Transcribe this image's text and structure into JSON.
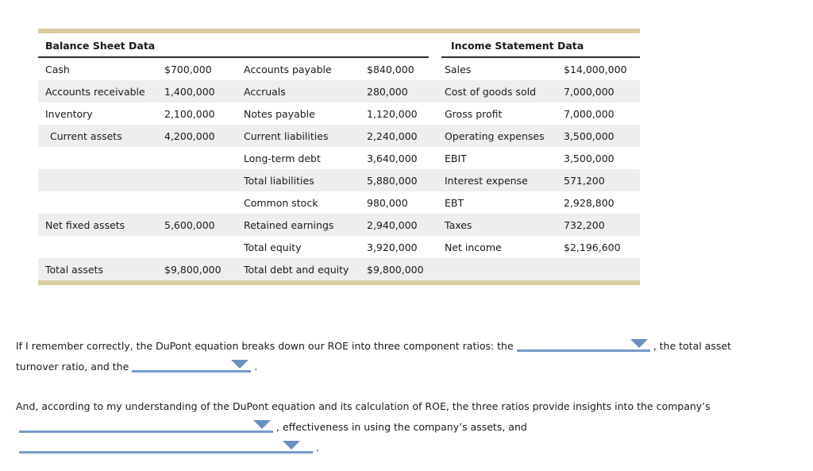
{
  "colors": {
    "accent_bar": "#d9cc9e",
    "stripe": "#eeeeee",
    "blank_line": "#759bc8",
    "dropdown_arrow": "#6a90bf"
  },
  "table": {
    "balance_header": "Balance Sheet Data",
    "income_header": "Income Statement Data",
    "rows": [
      {
        "c1": "Cash",
        "c2": "$700,000",
        "c3": "Accounts payable",
        "c4": "$840,000",
        "c5": "Sales",
        "c6": "$14,000,000"
      },
      {
        "c1": "Accounts receivable",
        "c2": "1,400,000",
        "c3": "Accruals",
        "c4": "280,000",
        "c5": "Cost of goods sold",
        "c6": "7,000,000"
      },
      {
        "c1": "Inventory",
        "c2": "2,100,000",
        "c3": "Notes payable",
        "c4": "1,120,000",
        "c5": "Gross profit",
        "c6": "7,000,000"
      },
      {
        "c1": "Current assets",
        "c2": "4,200,000",
        "c3": "Current liabilities",
        "c4": "2,240,000",
        "c5": "Operating expenses",
        "c6": "3,500,000",
        "indent1": true
      },
      {
        "c1": "",
        "c2": "",
        "c3": "Long-term debt",
        "c4": "3,640,000",
        "c5": "EBIT",
        "c6": "3,500,000"
      },
      {
        "c1": "",
        "c2": "",
        "c3": "Total liabilities",
        "c4": "5,880,000",
        "c5": "Interest expense",
        "c6": "571,200"
      },
      {
        "c1": "",
        "c2": "",
        "c3": "Common stock",
        "c4": "980,000",
        "c5": "EBT",
        "c6": "2,928,800"
      },
      {
        "c1": "Net fixed assets",
        "c2": "5,600,000",
        "c3": "Retained earnings",
        "c4": "2,940,000",
        "c5": "Taxes",
        "c6": "732,200"
      },
      {
        "c1": "",
        "c2": "",
        "c3": "Total equity",
        "c4": "3,920,000",
        "c5": "Net income",
        "c6": "$2,196,600"
      },
      {
        "c1": "Total assets",
        "c2": "$9,800,000",
        "c3": "Total debt and equity",
        "c4": "$9,800,000",
        "c5": "",
        "c6": ""
      }
    ]
  },
  "question": {
    "p1_line1_part1": "If I remember correctly, the DuPont equation breaks down our ROE into three component ratios: the",
    "p1_line1_part2": ", the total asset",
    "p1_line2_part1": "turnover ratio, and the",
    "p1_line2_part2": ".",
    "p2_line1": "And, according to my understanding of the DuPont equation and its calculation of ROE, the three ratios provide insights into the company’s",
    "p2_line2_part2": ", effectiveness in using the company’s assets, and",
    "p2_line3_part2": "."
  }
}
